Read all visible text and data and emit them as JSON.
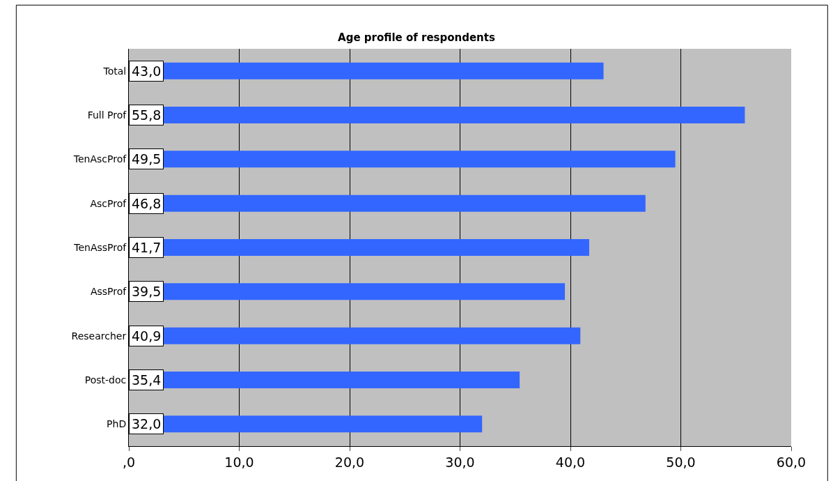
{
  "chart_data": {
    "type": "bar",
    "orientation": "horizontal",
    "title": "Age profile of respondents",
    "categories": [
      "Total",
      "Full Prof",
      "TenAscProf",
      "AscProf",
      "TenAssProf",
      "AssProf",
      "Researcher",
      "Post-doc",
      "PhD"
    ],
    "values": [
      43.0,
      55.8,
      49.5,
      46.8,
      41.7,
      39.5,
      40.9,
      35.4,
      32.0
    ],
    "value_labels": [
      "43,0",
      "55,8",
      "49,5",
      "46,8",
      "41,7",
      "39,5",
      "40,9",
      "35,4",
      "32,0"
    ],
    "color": "#3366ff",
    "xlim": [
      0,
      60
    ],
    "xticks": [
      {
        "value": 0,
        "label": ",0"
      },
      {
        "value": 10,
        "label": "10,0"
      },
      {
        "value": 20,
        "label": "20,0"
      },
      {
        "value": 30,
        "label": "30,0"
      },
      {
        "value": 40,
        "label": "40,0"
      },
      {
        "value": 50,
        "label": "50,0"
      },
      {
        "value": 60,
        "label": "60,0"
      }
    ],
    "grid": "x",
    "legend": false
  }
}
